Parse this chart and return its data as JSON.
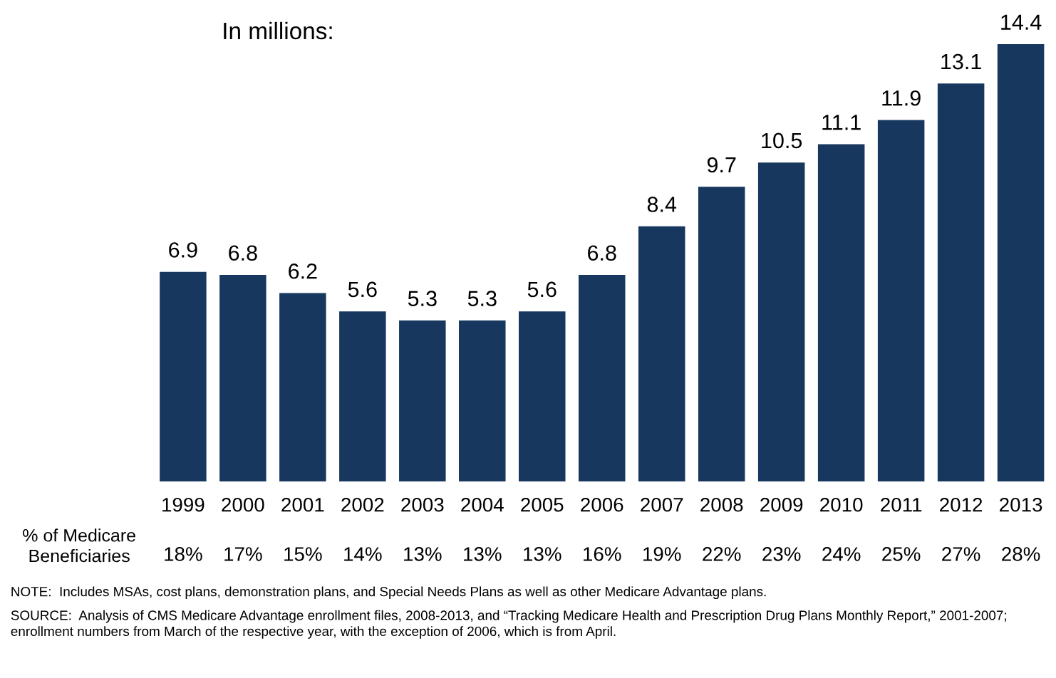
{
  "chart_data": {
    "type": "bar",
    "title": "In millions:",
    "categories": [
      "1999",
      "2000",
      "2001",
      "2002",
      "2003",
      "2004",
      "2005",
      "2006",
      "2007",
      "2008",
      "2009",
      "2010",
      "2011",
      "2012",
      "2013"
    ],
    "values": [
      6.9,
      6.8,
      6.2,
      5.6,
      5.3,
      5.3,
      5.6,
      6.8,
      8.4,
      9.7,
      10.5,
      11.1,
      11.9,
      13.1,
      14.4
    ],
    "color": "#17375e",
    "data_labels": true,
    "grid": false,
    "legend": false,
    "annotations": [
      "% of Medicare Beneficiaries",
      "18%",
      "17%",
      "15%",
      "14%",
      "13%",
      "13%",
      "13%",
      "16%",
      "19%",
      "22%",
      "23%",
      "24%",
      "25%",
      "27%",
      "28%",
      "NOTE:  Includes MSAs, cost plans, demonstration plans, and Special Needs Plans as well as other Medicare Advantage plans.",
      "SOURCE:  Analysis of CMS Medicare Advantage enrollment files, 2008-2013, and “Tracking Medicare Health and Prescription Drug Plans Monthly Report,” 2001-2007;\nenrollment numbers from March of the respective year, with the exception of 2006, which is from April."
    ]
  }
}
